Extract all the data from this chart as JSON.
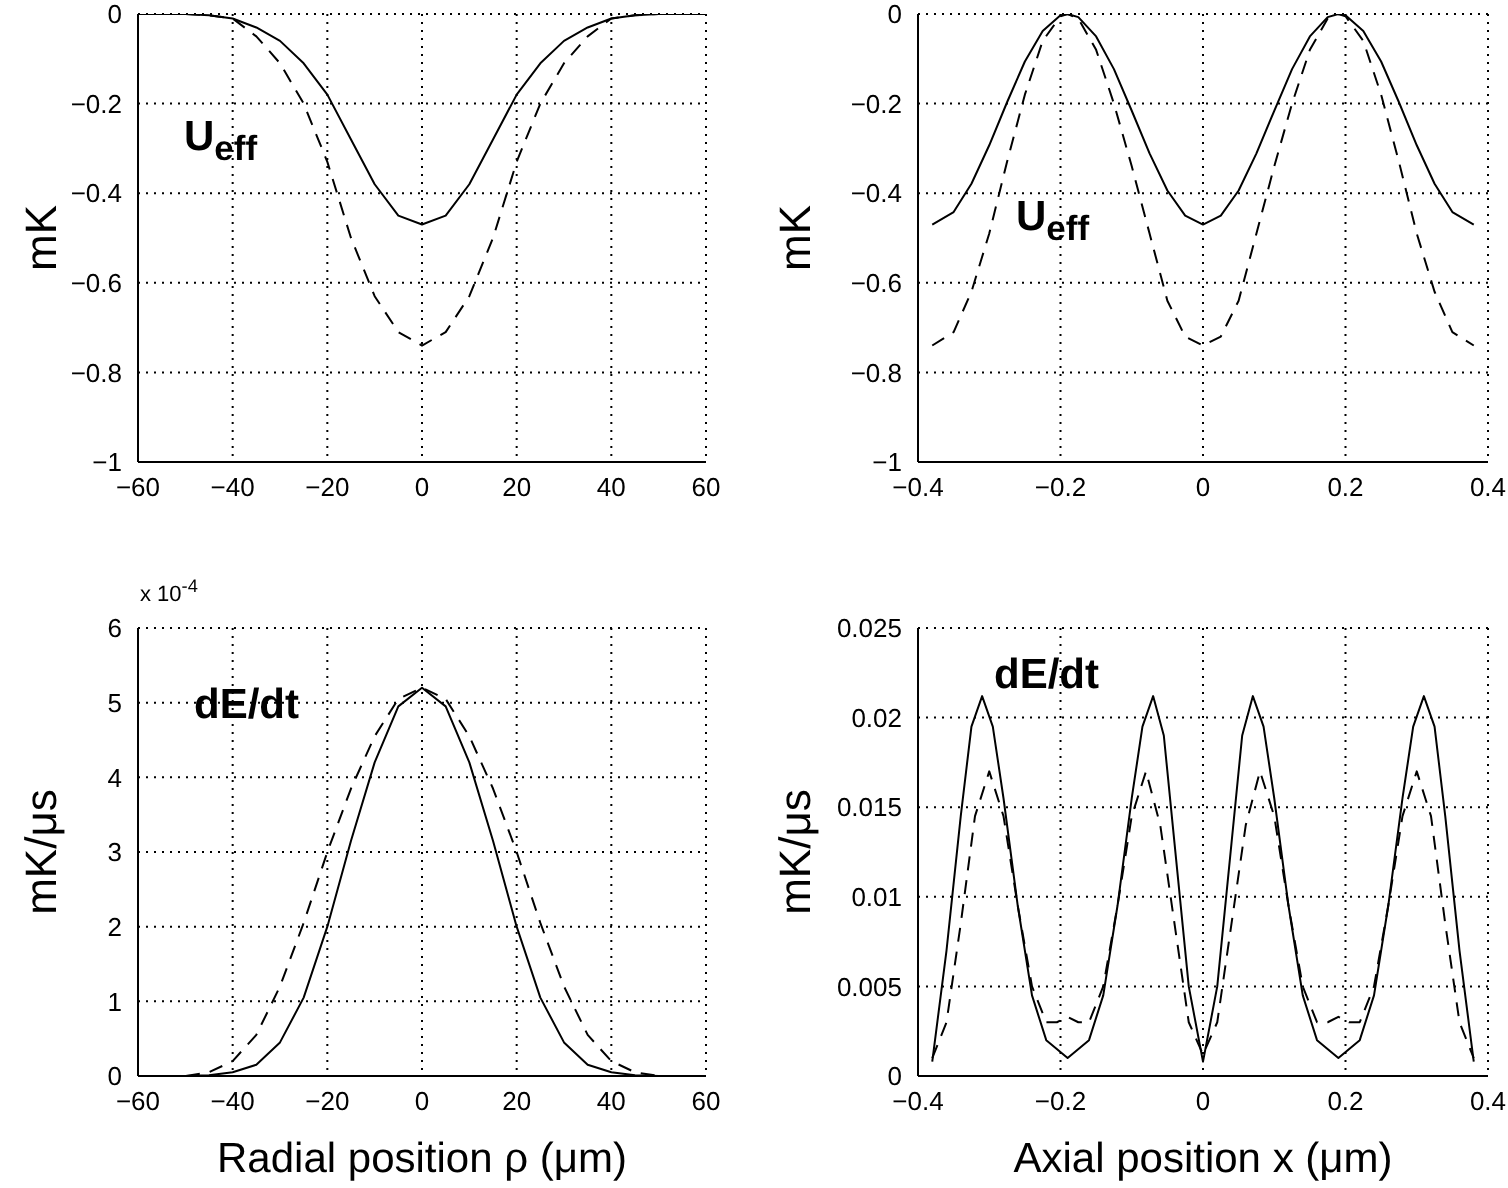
{
  "chart_data": [
    {
      "type": "line",
      "ylabel": "mK",
      "annotations": [
        "U$_{eff}$"
      ],
      "xlim": [
        -60,
        60
      ],
      "xticks": [
        -60,
        -40,
        -20,
        0,
        20,
        40,
        60
      ],
      "ylim": [
        -1,
        0
      ],
      "yticks": [
        -1,
        -0.8,
        -0.6,
        -0.4,
        -0.2,
        0
      ],
      "grid": true,
      "legend": false,
      "series": [
        {
          "color": "#000000",
          "line_style": "solid",
          "x": [
            -60,
            -50,
            -45,
            -40,
            -35,
            -30,
            -25,
            -20,
            -15,
            -10,
            -5,
            0,
            5,
            10,
            15,
            20,
            25,
            30,
            35,
            40,
            45,
            50,
            60
          ],
          "values": [
            0,
            0,
            -0.003,
            -0.01,
            -0.03,
            -0.06,
            -0.11,
            -0.18,
            -0.28,
            -0.38,
            -0.45,
            -0.47,
            -0.45,
            -0.38,
            -0.28,
            -0.18,
            -0.11,
            -0.06,
            -0.03,
            -0.01,
            -0.003,
            0,
            0
          ]
        },
        {
          "color": "#000000",
          "line_style": "dashed",
          "x": [
            -60,
            -50,
            -45,
            -40,
            -35,
            -30,
            -25,
            -20,
            -15,
            -10,
            -5,
            0,
            5,
            10,
            15,
            20,
            25,
            30,
            35,
            40,
            45,
            50,
            60
          ],
          "values": [
            0,
            0,
            -0.003,
            -0.01,
            -0.05,
            -0.11,
            -0.2,
            -0.33,
            -0.5,
            -0.63,
            -0.71,
            -0.74,
            -0.71,
            -0.63,
            -0.5,
            -0.33,
            -0.2,
            -0.11,
            -0.05,
            -0.01,
            -0.003,
            0,
            0
          ]
        }
      ]
    },
    {
      "type": "line",
      "ylabel": "mK",
      "annotations": [
        "U$_{eff}$"
      ],
      "xlim": [
        -0.4,
        0.4
      ],
      "xticks": [
        -0.4,
        -0.2,
        0,
        0.2,
        0.4
      ],
      "ylim": [
        -1,
        0
      ],
      "yticks": [
        -1,
        -0.8,
        -0.6,
        -0.4,
        -0.2,
        0
      ],
      "grid": true,
      "legend": false,
      "series": [
        {
          "color": "#000000",
          "line_style": "solid",
          "x": [
            -0.38,
            -0.35,
            -0.325,
            -0.3,
            -0.275,
            -0.25,
            -0.225,
            -0.2,
            -0.19,
            -0.175,
            -0.15,
            -0.125,
            -0.1,
            -0.075,
            -0.05,
            -0.025,
            0,
            0.025,
            0.05,
            0.075,
            0.1,
            0.125,
            0.15,
            0.175,
            0.19,
            0.2,
            0.225,
            0.25,
            0.275,
            0.3,
            0.325,
            0.35,
            0.38
          ],
          "values": [
            -0.47,
            -0.442,
            -0.379,
            -0.293,
            -0.197,
            -0.106,
            -0.038,
            -0.003,
            0,
            -0.007,
            -0.05,
            -0.123,
            -0.216,
            -0.311,
            -0.394,
            -0.45,
            -0.47,
            -0.45,
            -0.394,
            -0.311,
            -0.216,
            -0.123,
            -0.05,
            -0.007,
            0,
            -0.003,
            -0.038,
            -0.106,
            -0.197,
            -0.293,
            -0.379,
            -0.442,
            -0.47
          ]
        },
        {
          "color": "#000000",
          "line_style": "dashed",
          "x": [
            -0.38,
            -0.35,
            -0.325,
            -0.3,
            -0.275,
            -0.25,
            -0.225,
            -0.2,
            -0.19,
            -0.175,
            -0.15,
            -0.125,
            -0.1,
            -0.075,
            -0.05,
            -0.025,
            0,
            0.025,
            0.05,
            0.075,
            0.1,
            0.125,
            0.15,
            0.175,
            0.19,
            0.2,
            0.225,
            0.25,
            0.275,
            0.3,
            0.325,
            0.35,
            0.38
          ],
          "values": [
            -0.74,
            -0.71,
            -0.62,
            -0.49,
            -0.33,
            -0.18,
            -0.06,
            -0.005,
            0,
            -0.01,
            -0.08,
            -0.2,
            -0.34,
            -0.49,
            -0.64,
            -0.72,
            -0.74,
            -0.72,
            -0.64,
            -0.49,
            -0.34,
            -0.2,
            -0.08,
            -0.01,
            0,
            -0.005,
            -0.06,
            -0.18,
            -0.33,
            -0.49,
            -0.62,
            -0.71,
            -0.74
          ]
        }
      ]
    },
    {
      "type": "line",
      "xlabel": "Radial position ρ (μm)",
      "ylabel": "mK/μs",
      "annotations": [
        "dE/dt",
        "x 10$^{-4}$"
      ],
      "xlim": [
        -60,
        60
      ],
      "xticks": [
        -60,
        -40,
        -20,
        0,
        20,
        40,
        60
      ],
      "ylim": [
        0,
        6
      ],
      "yticks": [
        0,
        1,
        2,
        3,
        4,
        5,
        6
      ],
      "grid": true,
      "legend": false,
      "series": [
        {
          "color": "#000000",
          "line_style": "solid",
          "x": [
            -60,
            -50,
            -45,
            -40,
            -35,
            -30,
            -25,
            -20,
            -15,
            -10,
            -5,
            0,
            5,
            10,
            15,
            20,
            25,
            30,
            35,
            40,
            45,
            50,
            60
          ],
          "values": [
            0,
            0,
            0.01,
            0.05,
            0.15,
            0.45,
            1.05,
            2,
            3.15,
            4.2,
            4.95,
            5.2,
            4.95,
            4.2,
            3.15,
            2,
            1.05,
            0.45,
            0.15,
            0.05,
            0.01,
            0,
            0
          ]
        },
        {
          "color": "#000000",
          "line_style": "dashed",
          "x": [
            -60,
            -50,
            -45,
            -40,
            -35,
            -30,
            -25,
            -20,
            -15,
            -10,
            -5,
            0,
            5,
            10,
            15,
            20,
            25,
            30,
            35,
            40,
            45,
            50,
            60
          ],
          "values": [
            0,
            0,
            0.05,
            0.2,
            0.55,
            1.2,
            2.05,
            3,
            3.85,
            4.55,
            5.05,
            5.2,
            5.05,
            4.55,
            3.85,
            3,
            2.05,
            1.2,
            0.55,
            0.2,
            0.05,
            0,
            0
          ]
        }
      ]
    },
    {
      "type": "line",
      "xlabel": "Axial position  x (μm)",
      "ylabel": "mK/μs",
      "annotations": [
        "dE/dt"
      ],
      "xlim": [
        -0.4,
        0.4
      ],
      "xticks": [
        -0.4,
        -0.2,
        0,
        0.2,
        0.4
      ],
      "ylim": [
        0,
        0.025
      ],
      "yticks": [
        0,
        0.005,
        0.01,
        0.015,
        0.02,
        0.025
      ],
      "grid": true,
      "legend": false,
      "series": [
        {
          "color": "#000000",
          "line_style": "solid",
          "x": [
            -0.38,
            -0.36,
            -0.34,
            -0.325,
            -0.31,
            -0.295,
            -0.28,
            -0.26,
            -0.24,
            -0.22,
            -0.19,
            -0.16,
            -0.14,
            -0.12,
            -0.1,
            -0.085,
            -0.07,
            -0.055,
            -0.04,
            -0.02,
            0,
            0.02,
            0.04,
            0.055,
            0.07,
            0.085,
            0.1,
            0.12,
            0.14,
            0.16,
            0.19,
            0.22,
            0.24,
            0.26,
            0.28,
            0.295,
            0.31,
            0.325,
            0.34,
            0.36,
            0.38
          ],
          "values": [
            0.0008,
            0.007,
            0.0145,
            0.0195,
            0.0212,
            0.0195,
            0.0155,
            0.0095,
            0.0045,
            0.002,
            0.001,
            0.002,
            0.0045,
            0.0095,
            0.0155,
            0.0195,
            0.0212,
            0.019,
            0.013,
            0.005,
            0.0008,
            0.005,
            0.013,
            0.019,
            0.0212,
            0.0195,
            0.0155,
            0.0095,
            0.0045,
            0.002,
            0.001,
            0.002,
            0.0045,
            0.0095,
            0.0155,
            0.0195,
            0.0212,
            0.0195,
            0.0145,
            0.007,
            0.0008
          ]
        },
        {
          "color": "#000000",
          "line_style": "dashed",
          "x": [
            -0.38,
            -0.36,
            -0.34,
            -0.32,
            -0.3,
            -0.28,
            -0.26,
            -0.24,
            -0.22,
            -0.205,
            -0.19,
            -0.175,
            -0.16,
            -0.14,
            -0.12,
            -0.1,
            -0.08,
            -0.06,
            -0.04,
            -0.02,
            0,
            0.02,
            0.04,
            0.06,
            0.08,
            0.1,
            0.12,
            0.14,
            0.16,
            0.175,
            0.19,
            0.205,
            0.22,
            0.24,
            0.26,
            0.28,
            0.3,
            0.32,
            0.34,
            0.36,
            0.38
          ],
          "values": [
            0.001,
            0.003,
            0.0085,
            0.0145,
            0.017,
            0.0145,
            0.0095,
            0.005,
            0.003,
            0.003,
            0.0033,
            0.003,
            0.003,
            0.005,
            0.0095,
            0.0145,
            0.017,
            0.014,
            0.0085,
            0.003,
            0.0012,
            0.003,
            0.0085,
            0.014,
            0.017,
            0.0145,
            0.0095,
            0.005,
            0.003,
            0.003,
            0.0033,
            0.003,
            0.003,
            0.005,
            0.0095,
            0.0145,
            0.017,
            0.0145,
            0.0085,
            0.003,
            0.001
          ]
        }
      ]
    }
  ]
}
